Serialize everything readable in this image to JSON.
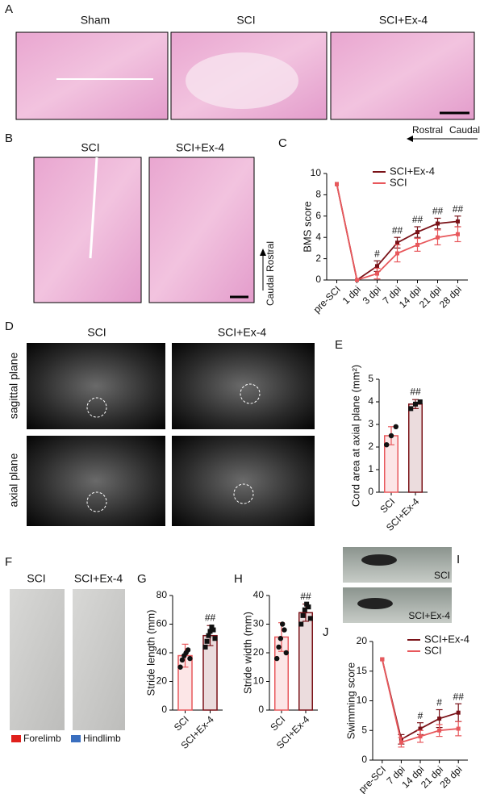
{
  "figure": {
    "labels": [
      "A",
      "B",
      "C",
      "D",
      "E",
      "F",
      "G",
      "H",
      "I",
      "J"
    ],
    "he_longitudinal_titles": [
      "Sham",
      "SCI",
      "SCI+Ex-4"
    ],
    "he_longitudinal_direction": [
      "Rostral",
      "Caudal"
    ],
    "he_zoom_titles": [
      "SCI",
      "SCI+Ex-4"
    ],
    "he_zoom_direction": [
      "Rostral",
      "Caudal"
    ],
    "mri_titles": [
      "SCI",
      "SCI+Ex-4"
    ],
    "mri_planes": [
      "sagittal plane",
      "axial plane"
    ],
    "footprint_titles": [
      "SCI",
      "SCI+Ex-4"
    ],
    "footprint_legend": [
      "Forelimb",
      "Hindlimb"
    ],
    "swim_labels": [
      "SCI",
      "SCI+Ex-4"
    ]
  },
  "chart_data": [
    {
      "type": "line",
      "ylabel": "BMS score",
      "categories": [
        "pre-SCI",
        "1 dpi",
        "3 dpi",
        "7 dpi",
        "14 dpi",
        "21 dpi",
        "28 dpi"
      ],
      "ylim": [
        0,
        10
      ],
      "yticks": [
        0,
        2,
        4,
        6,
        8,
        10
      ],
      "series": [
        {
          "name": "SCI+Ex-4",
          "color": "#7a1218",
          "values": [
            9,
            0,
            1.3,
            3.5,
            4.5,
            5.3,
            5.5
          ],
          "errors": [
            0,
            0,
            0.5,
            0.5,
            0.5,
            0.5,
            0.5
          ]
        },
        {
          "name": "SCI",
          "color": "#e8585c",
          "values": [
            9,
            0,
            0.6,
            2.5,
            3.3,
            4,
            4.3
          ],
          "errors": [
            0,
            0,
            0.5,
            0.8,
            0.6,
            0.7,
            0.7
          ]
        }
      ],
      "annotations": [
        null,
        null,
        "#",
        "##",
        "##",
        "##",
        "##"
      ]
    },
    {
      "type": "bar",
      "ylabel": "Cord area at axial plane (mm²)",
      "categories": [
        "SCI",
        "SCI+Ex-4"
      ],
      "values": [
        2.5,
        3.9
      ],
      "errors": [
        0.4,
        0.2
      ],
      "points": [
        [
          2.1,
          2.5,
          2.9
        ],
        [
          3.7,
          3.9,
          4.0
        ]
      ],
      "colors": [
        "#e8585c",
        "#7a1218"
      ],
      "annotations": [
        null,
        "##"
      ],
      "ylim": [
        0,
        5
      ],
      "yticks": [
        0,
        1,
        2,
        3,
        4,
        5
      ]
    },
    {
      "type": "bar",
      "ylabel": "Stride length (mm)",
      "categories": [
        "SCI",
        "SCI+Ex-4"
      ],
      "values": [
        38,
        52
      ],
      "errors": [
        8,
        7
      ],
      "points": [
        [
          30,
          35,
          38,
          40,
          42,
          36
        ],
        [
          44,
          48,
          52,
          55,
          58,
          56,
          50
        ]
      ],
      "colors": [
        "#e8585c",
        "#7a1218"
      ],
      "annotations": [
        null,
        "##"
      ],
      "ylim": [
        0,
        80
      ],
      "yticks": [
        0,
        20,
        40,
        60,
        80
      ]
    },
    {
      "type": "bar",
      "ylabel": "Stride width (mm)",
      "categories": [
        "SCI",
        "SCI+Ex-4"
      ],
      "values": [
        25.5,
        34
      ],
      "errors": [
        5,
        3
      ],
      "points": [
        [
          18,
          22,
          25,
          30,
          28,
          20
        ],
        [
          30,
          33,
          35,
          37,
          36,
          32
        ]
      ],
      "colors": [
        "#e8585c",
        "#7a1218"
      ],
      "annotations": [
        null,
        "##"
      ],
      "ylim": [
        0,
        40
      ],
      "yticks": [
        0,
        10,
        20,
        30,
        40
      ]
    },
    {
      "type": "line",
      "ylabel": "Swimming score",
      "categories": [
        "pre-SCI",
        "7 dpi",
        "14 dpi",
        "21 dpi",
        "28 dpi"
      ],
      "ylim": [
        0,
        20
      ],
      "yticks": [
        0,
        5,
        10,
        15,
        20
      ],
      "series": [
        {
          "name": "SCI+Ex-4",
          "color": "#7a1218",
          "values": [
            17,
            3.5,
            5.3,
            7,
            8
          ],
          "errors": [
            0,
            0.8,
            1,
            1.5,
            1.5
          ]
        },
        {
          "name": "SCI",
          "color": "#e8585c",
          "values": [
            17,
            3,
            4,
            5,
            5.3
          ],
          "errors": [
            0,
            0.8,
            1,
            1,
            1.2
          ]
        }
      ],
      "annotations": [
        null,
        null,
        "#",
        "#",
        "##"
      ]
    }
  ]
}
